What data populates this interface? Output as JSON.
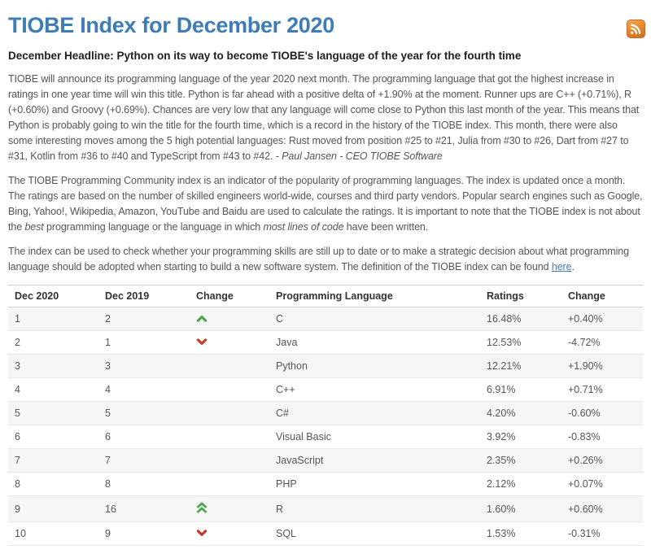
{
  "header": {
    "title": "TIOBE Index for December 2020",
    "headline": "December Headline: Python on its way to become TIOBE's language of the year for the fourth time"
  },
  "icons": {
    "rss": "rss-feed-icon",
    "up": "chevron-up-icon",
    "up2": "double-chevron-up-icon",
    "down": "chevron-down-icon"
  },
  "paragraphs": {
    "p1": {
      "text": "TIOBE will announce its programming language of the year 2020 next month. The programming language that got the highest increase in ratings in one year time will win this title. Python is far ahead with a positive delta of +1.90% at the moment. Runner ups are C++ (+0.71%), R (+0.60%) and Groovy (+0.69%). Chances are very low that any language will come close to Python this last month of the year. This means that Python is probably going to win the title for the fourth time, which is a record in the history of the TIOBE index. This month, there were also some interesting moves among the 5 high potential languages: Rust moved from position #25 to #21, Julia from #30 to #26, Dart from #27 to #31, Kotlin from #36 to #40 and TypeScript from #43 to #42. - ",
      "attribution": "Paul Jansen - CEO TIOBE Software"
    },
    "p2": {
      "part1": "The TIOBE Programming Community index is an indicator of the popularity of programming languages. The index is updated once a month. The ratings are based on the number of skilled engineers world-wide, courses and third party vendors. Popular search engines such as Google, Bing, Yahoo!, Wikipedia, Amazon, YouTube and Baidu are used to calculate the ratings. It is important to note that the TIOBE index is not about the ",
      "italic1": "best",
      "part2": " programming language or the language in which ",
      "italic2": "most lines of code",
      "part3": " have been written."
    },
    "p3": {
      "part1": "The index can be used to check whether your programming skills are still up to date or to make a strategic decision about what programming language should be adopted when starting to build a new software system. The definition of the TIOBE index can be found ",
      "link_text": "here",
      "part2": "."
    }
  },
  "table": {
    "headers": [
      "Dec 2020",
      "Dec 2019",
      "Change",
      "Programming Language",
      "Ratings",
      "Change"
    ],
    "rows": [
      {
        "dec2020": "1",
        "dec2019": "2",
        "move": "up",
        "language": "C",
        "ratings": "16.48%",
        "change_pct": "+0.40%"
      },
      {
        "dec2020": "2",
        "dec2019": "1",
        "move": "down",
        "language": "Java",
        "ratings": "12.53%",
        "change_pct": "-4.72%"
      },
      {
        "dec2020": "3",
        "dec2019": "3",
        "move": "none",
        "language": "Python",
        "ratings": "12.21%",
        "change_pct": "+1.90%"
      },
      {
        "dec2020": "4",
        "dec2019": "4",
        "move": "none",
        "language": "C++",
        "ratings": "6.91%",
        "change_pct": "+0.71%"
      },
      {
        "dec2020": "5",
        "dec2019": "5",
        "move": "none",
        "language": "C#",
        "ratings": "4.20%",
        "change_pct": "-0.60%"
      },
      {
        "dec2020": "6",
        "dec2019": "6",
        "move": "none",
        "language": "Visual Basic",
        "ratings": "3.92%",
        "change_pct": "-0.83%"
      },
      {
        "dec2020": "7",
        "dec2019": "7",
        "move": "none",
        "language": "JavaScript",
        "ratings": "2.35%",
        "change_pct": "+0.26%"
      },
      {
        "dec2020": "8",
        "dec2019": "8",
        "move": "none",
        "language": "PHP",
        "ratings": "2.12%",
        "change_pct": "+0.07%"
      },
      {
        "dec2020": "9",
        "dec2019": "16",
        "move": "up2",
        "language": "R",
        "ratings": "1.60%",
        "change_pct": "+0.60%"
      },
      {
        "dec2020": "10",
        "dec2019": "9",
        "move": "down",
        "language": "SQL",
        "ratings": "1.53%",
        "change_pct": "-0.31%"
      }
    ]
  },
  "theme": {
    "title_blue": "#3e7cb5",
    "link_blue": "#3e7cb5",
    "up_green": "#4fa650",
    "down_red": "#c43b28",
    "rss_orange": "#e78a2e",
    "row_stripe": "#f6f6f6",
    "text_gray": "#555555"
  }
}
